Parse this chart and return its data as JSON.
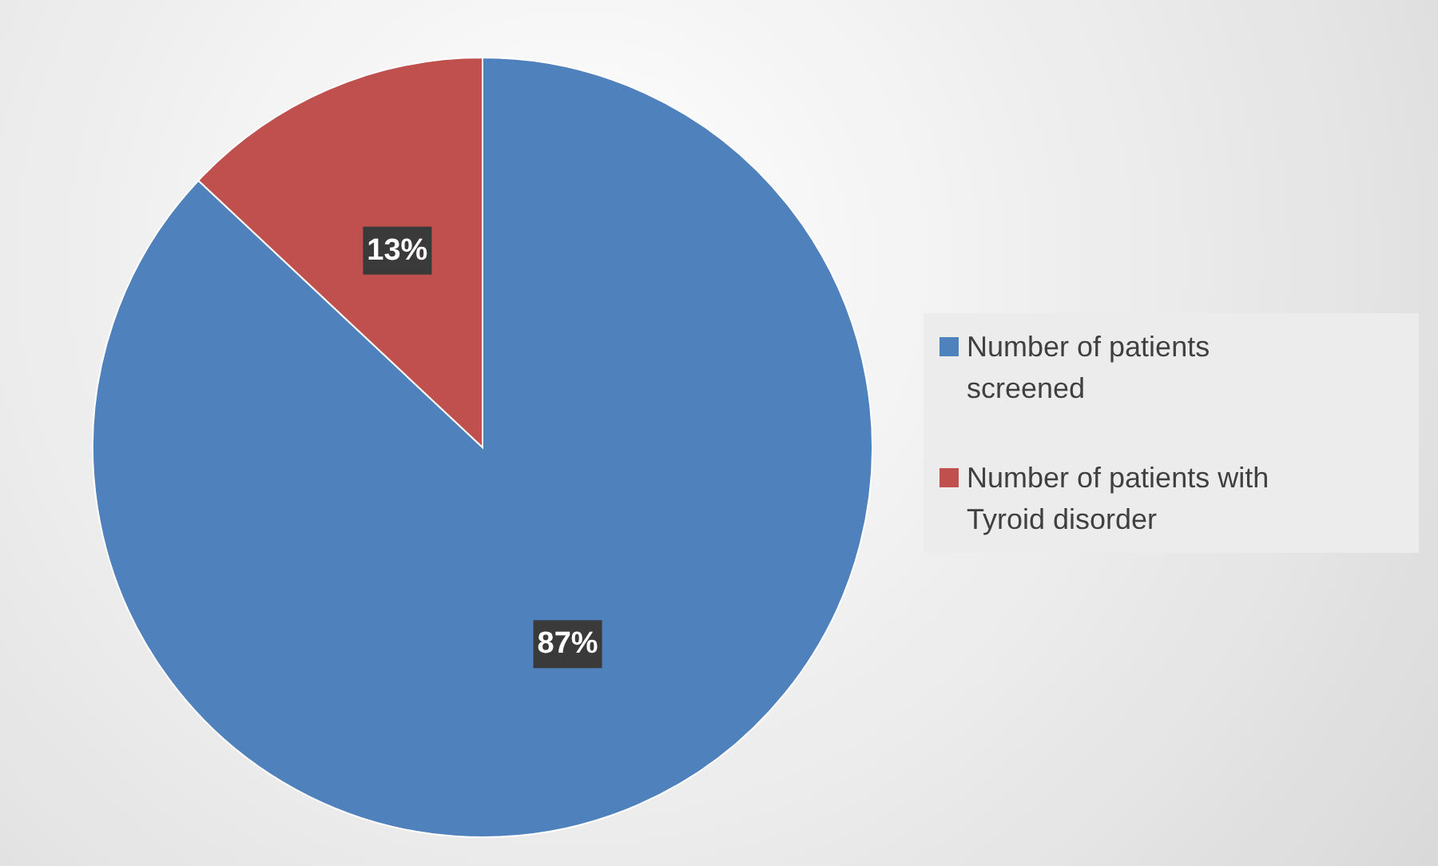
{
  "chart_data": {
    "type": "pie",
    "categories": [
      "Number of patients screened",
      "Number of patients with Tyroid disorder"
    ],
    "values": [
      87,
      13
    ],
    "value_labels": [
      "87%",
      "13%"
    ],
    "colors": [
      "#4f81bd",
      "#c0504d"
    ],
    "legend": "right"
  }
}
